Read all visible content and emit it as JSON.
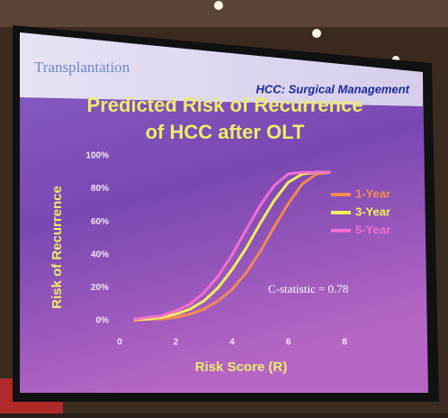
{
  "header": {
    "left": "Transplantation",
    "right": "HCC: Surgical Management"
  },
  "chart_data": {
    "type": "line",
    "title": [
      "Predicted Risk of Recurrence",
      "of HCC after OLT"
    ],
    "x_label": "Risk Score (R)",
    "y_label": "Risk of Recurrence",
    "annotation": "C-statistic = 0.78",
    "x": [
      0.5,
      1,
      1.5,
      2,
      2.5,
      3,
      3.5,
      4,
      4.5,
      5,
      5.5,
      6,
      6.5,
      7,
      7.5
    ],
    "series": [
      {
        "name": "1-Year",
        "color": "#f28a52",
        "values": [
          0,
          1,
          1,
          2,
          4,
          7,
          12,
          19,
          29,
          42,
          57,
          71,
          83,
          89,
          90
        ]
      },
      {
        "name": "3-Year",
        "color": "#f2ee5e",
        "values": [
          1,
          1,
          2,
          4,
          7,
          12,
          20,
          31,
          44,
          59,
          73,
          84,
          89,
          90,
          90
        ]
      },
      {
        "name": "5-Year",
        "color": "#f26ed2",
        "values": [
          1,
          2,
          3,
          6,
          10,
          17,
          27,
          40,
          55,
          70,
          82,
          89,
          90,
          90,
          90
        ]
      }
    ],
    "xlim": [
      0,
      8
    ],
    "xticks": [
      0,
      2,
      4,
      6,
      8
    ],
    "ylim": [
      0,
      100
    ],
    "yticks": [
      {
        "value": 0,
        "label": "0%"
      },
      {
        "value": 20,
        "label": "20%"
      },
      {
        "value": 40,
        "label": "40%"
      },
      {
        "value": 60,
        "label": "60%"
      },
      {
        "value": 80,
        "label": "80%"
      },
      {
        "value": 100,
        "label": "100%"
      }
    ],
    "legend": "right",
    "grid": false
  }
}
